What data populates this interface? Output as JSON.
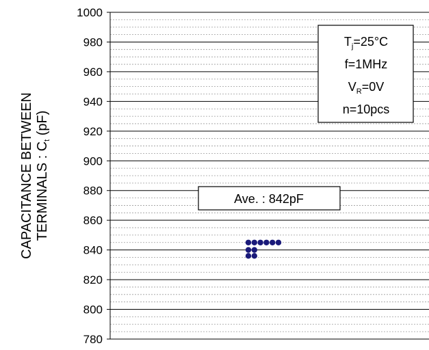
{
  "chart_data": {
    "type": "scatter",
    "ylabel_line1": "CAPACITANCE BETWEEN",
    "ylabel_line2_main": "TERMINALS : C",
    "ylabel_line2_sub": "t",
    "ylabel_line2_unit": " (pF)",
    "ylim": [
      780,
      1000
    ],
    "ytick_values": [
      780,
      800,
      820,
      840,
      860,
      880,
      900,
      920,
      940,
      960,
      980,
      1000
    ],
    "yticks": [
      "780",
      "800",
      "820",
      "840",
      "860",
      "880",
      "900",
      "920",
      "940",
      "960",
      "980",
      "1000"
    ],
    "major_grid_step": 20,
    "minor_grid_step": 5,
    "grid": true,
    "average_annotation": "Ave. : 842pF",
    "conditions": {
      "tj_main": "T",
      "tj_sub": "j",
      "tj_value": "=25°C",
      "freq": "f=1MHz",
      "vr_main": "V",
      "vr_sub": "R",
      "vr_value": "=0V",
      "count": "n=10pcs"
    },
    "points": [
      {
        "y": 845
      },
      {
        "y": 845
      },
      {
        "y": 845
      },
      {
        "y": 845
      },
      {
        "y": 845
      },
      {
        "y": 845
      },
      {
        "y": 840
      },
      {
        "y": 840
      },
      {
        "y": 836
      },
      {
        "y": 836
      }
    ],
    "point_color": "#1a1a7a"
  }
}
